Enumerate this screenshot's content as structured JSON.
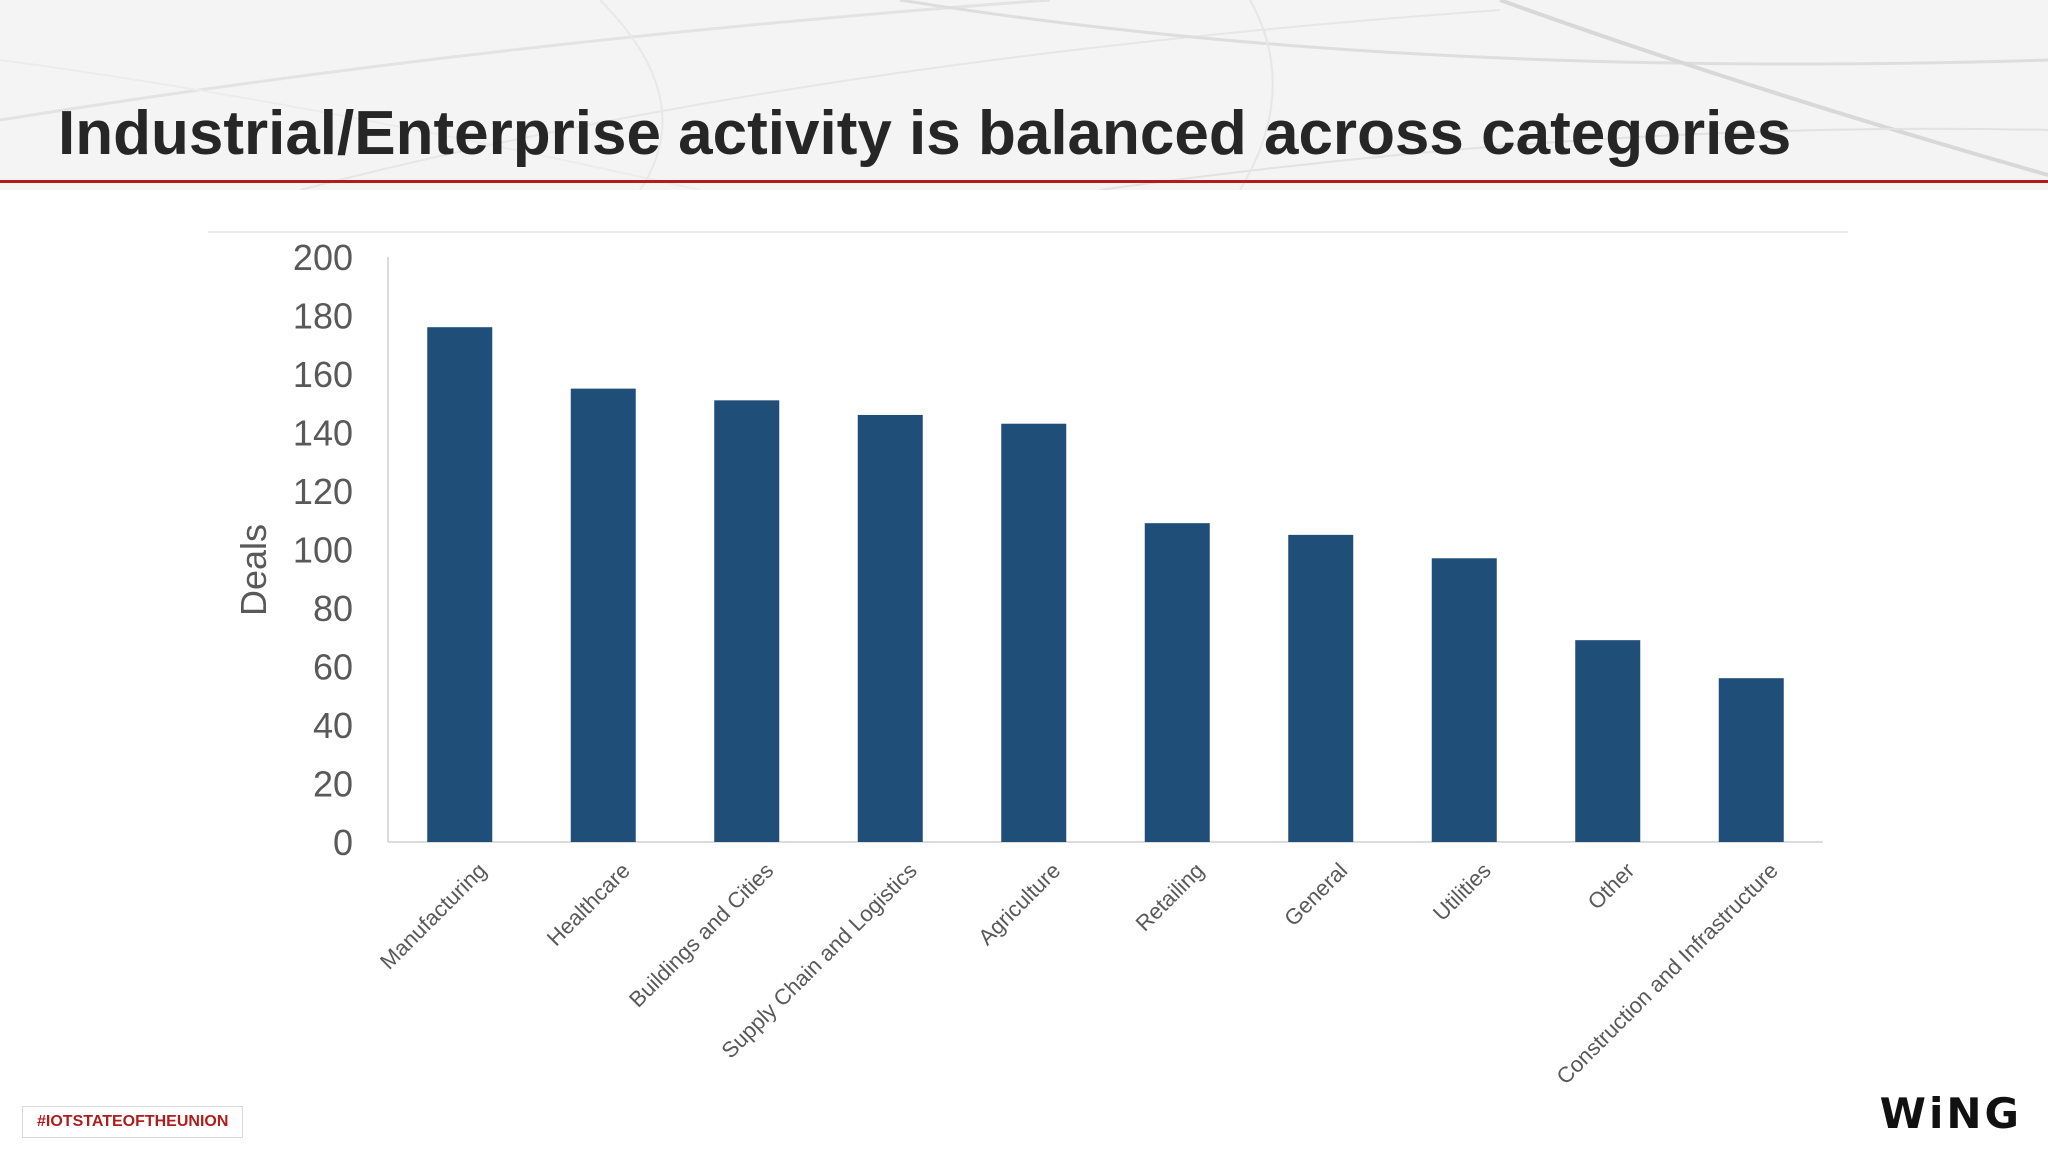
{
  "slide": {
    "title": "Industrial/Enterprise activity is balanced across categories",
    "hashtag": "#IOTSTATEOFTHEUNION",
    "logo": "WiNG",
    "accent_color": "#b01c1c"
  },
  "chart_data": {
    "type": "bar",
    "categories": [
      "Manufacturing",
      "Healthcare",
      "Buildings and Cities",
      "Supply Chain and Logistics",
      "Agriculture",
      "Retailing",
      "General",
      "Utilities",
      "Other",
      "Construction and Infrastructure"
    ],
    "values": [
      176,
      155,
      151,
      146,
      143,
      109,
      105,
      97,
      69,
      56
    ],
    "ylabel": "Deals",
    "ylim": [
      0,
      200
    ],
    "yticks": [
      0,
      20,
      40,
      60,
      80,
      100,
      120,
      140,
      160,
      180,
      200
    ],
    "bar_color": "#1f4e79",
    "grid": false,
    "legend": "none"
  }
}
